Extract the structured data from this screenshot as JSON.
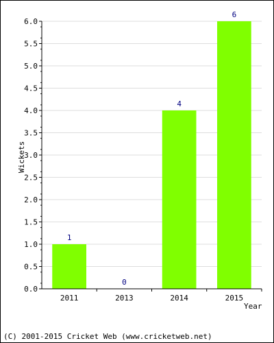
{
  "chart_data": {
    "type": "bar",
    "categories": [
      "2011",
      "2013",
      "2014",
      "2015"
    ],
    "values": [
      1,
      0,
      4,
      6
    ],
    "data_labels": [
      "1",
      "0",
      "4",
      "6"
    ],
    "title": "",
    "xlabel": "Year",
    "ylabel": "Wickets",
    "ylim": [
      0,
      6
    ],
    "yticks": [
      "0.0",
      "0.5",
      "1.0",
      "1.5",
      "2.0",
      "2.5",
      "3.0",
      "3.5",
      "4.0",
      "4.5",
      "5.0",
      "5.5",
      "6.0"
    ],
    "grid": true,
    "legend": "none",
    "colors": {
      "bar": "#80ff00",
      "data_label": "#000080",
      "grid": "#dddddd",
      "axis": "#000000"
    }
  },
  "footer": {
    "copyright": "(C) 2001-2015 Cricket Web (www.cricketweb.net)"
  }
}
